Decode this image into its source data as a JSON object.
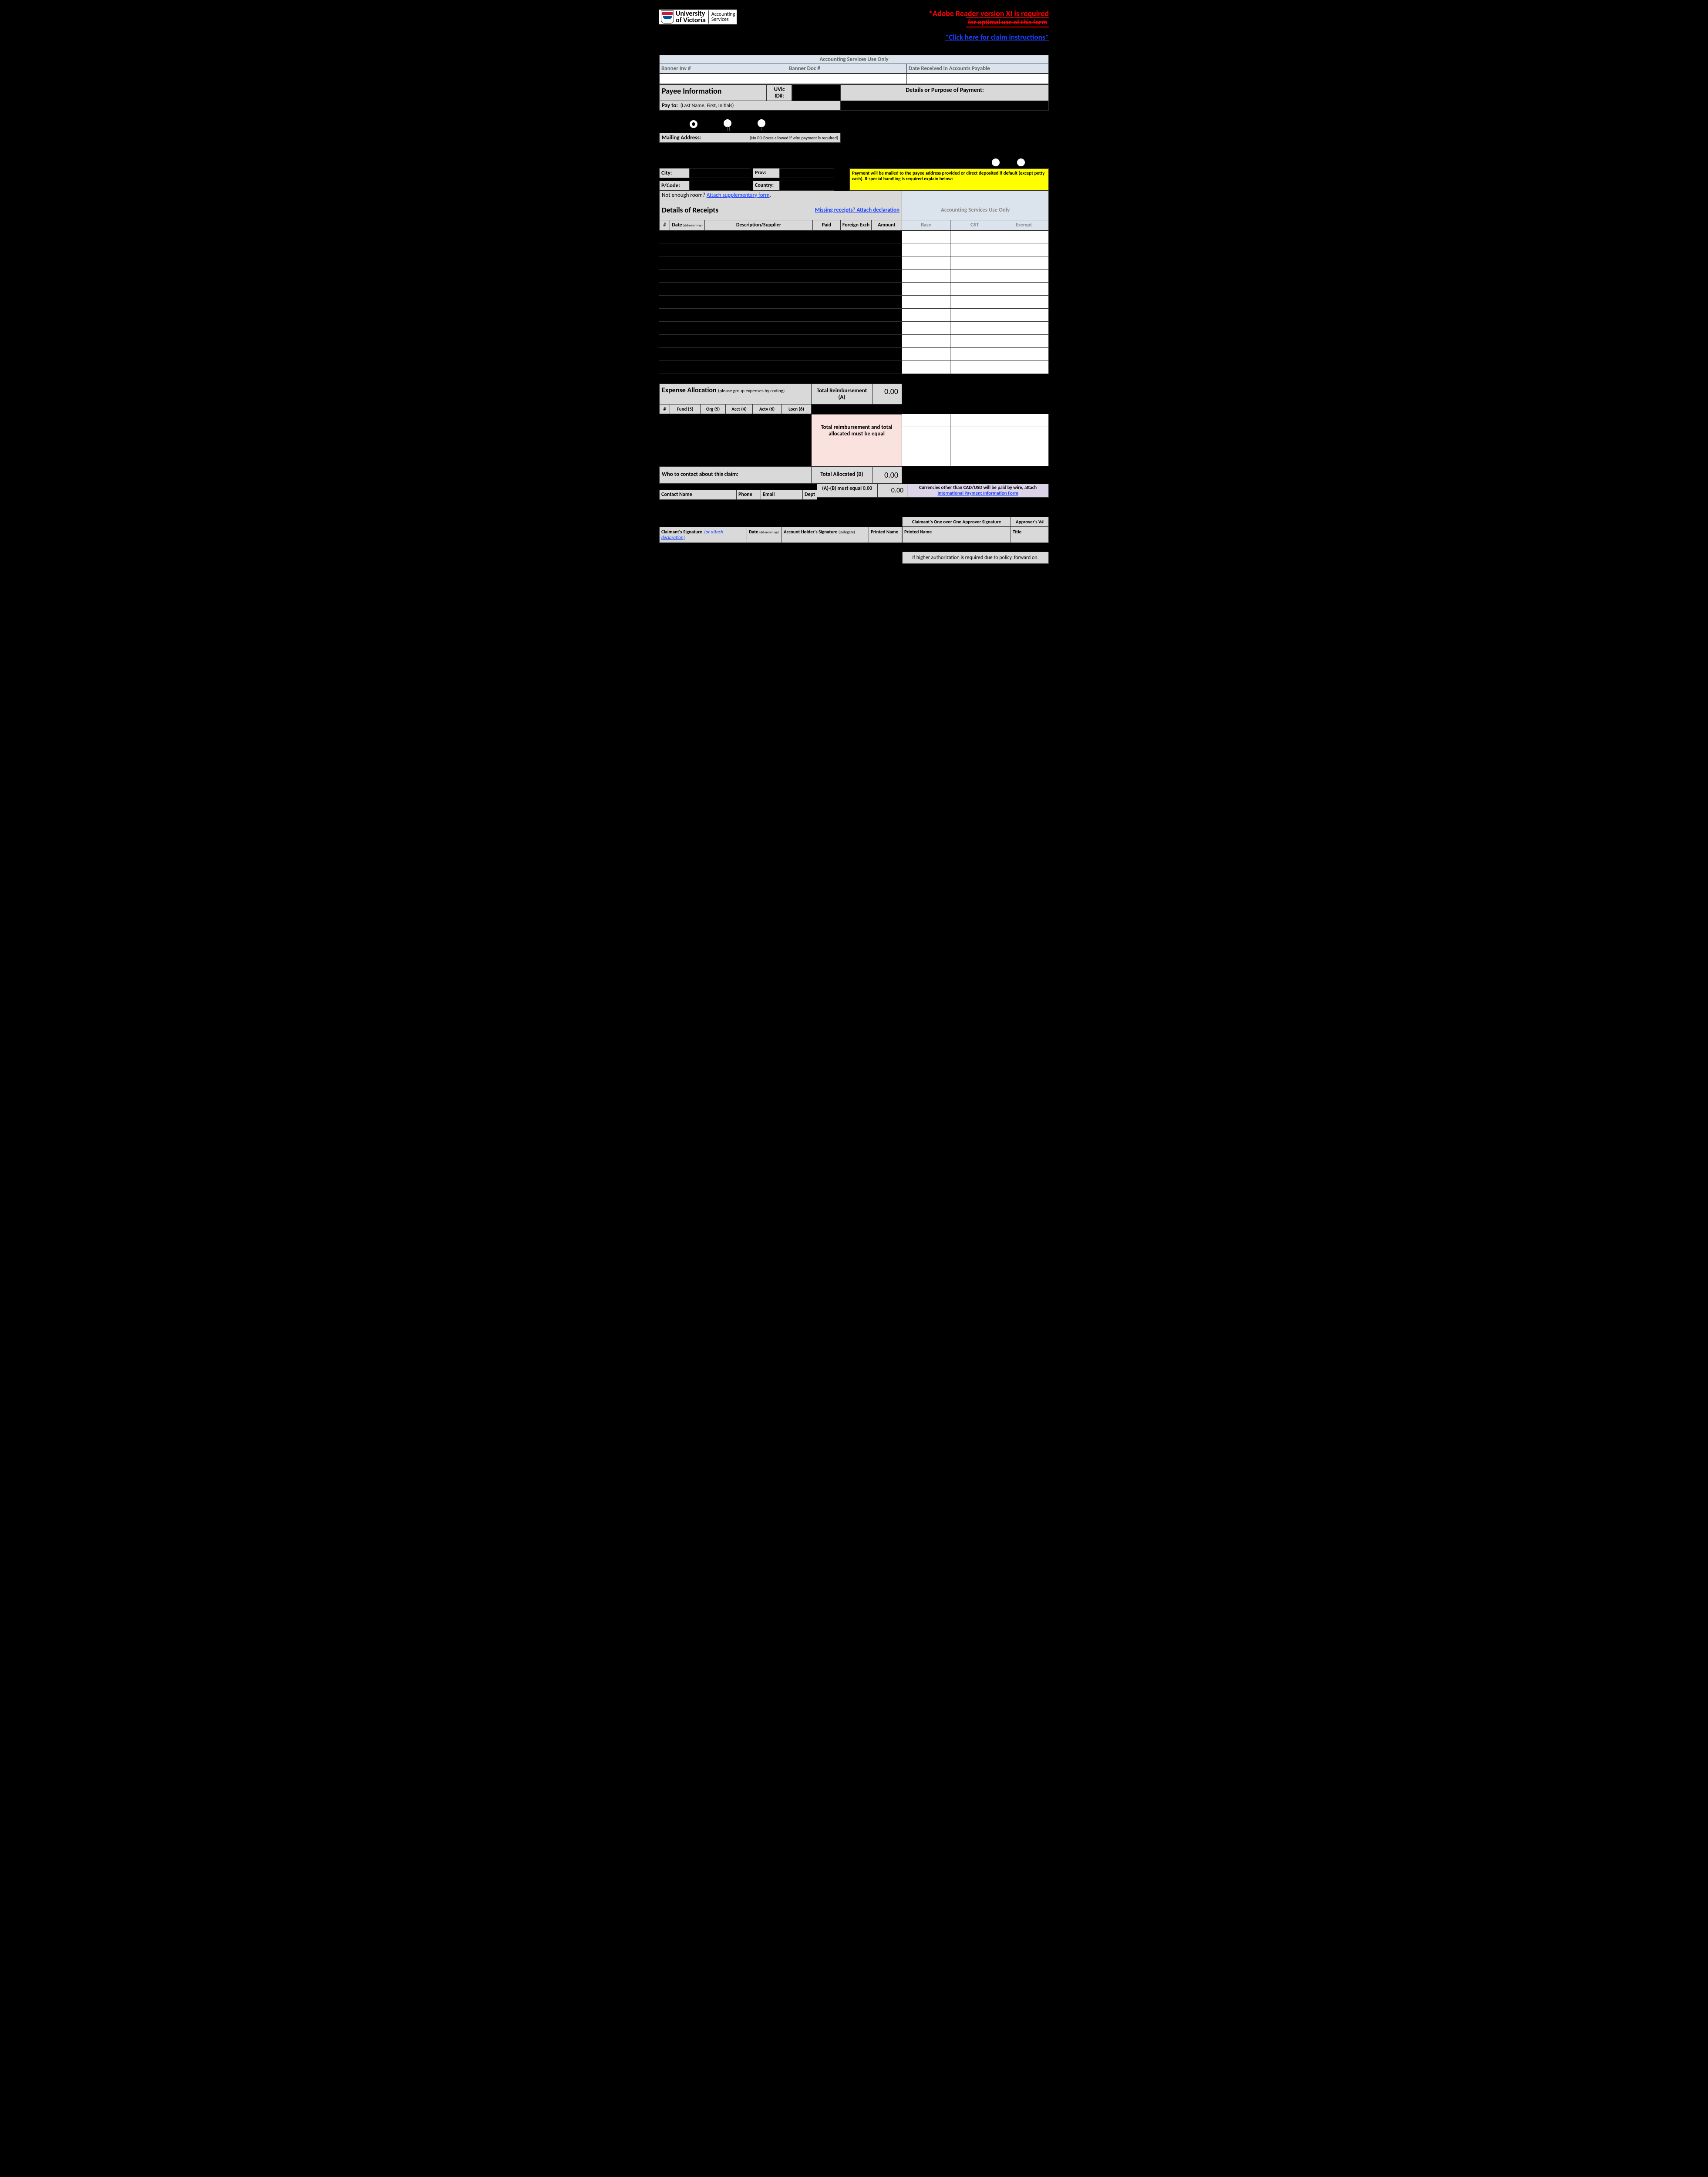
{
  "header": {
    "univ_line1": "University",
    "univ_line2": "of Victoria",
    "dept_line1": "Accounting",
    "dept_line2": "Services",
    "adobe_line1": "*Adobe Reader version XI is required",
    "adobe_line2": "for optimal use of this form",
    "claim_link": "*Click here for claim instructions*"
  },
  "acct_use_only": "Accounting Services Use Only",
  "banner_inv": "Banner Inv #",
  "banner_doc": "Banner Doc #",
  "date_recv": "Date Received in Accounts Payable",
  "payee_info": "Payee Information",
  "uvic_id": "UVic ID#:",
  "details_purpose": "Details or Purpose of Payment:",
  "pay_to": "Pay to:",
  "pay_to_sub": "(Last Name, First, Initials)",
  "mailing": "Mailing Address:",
  "mailing_sub": "(No PO Boxes allowed if wire payment is required)",
  "city": "City:",
  "prov": "Prov:",
  "pcode": "P/Code:",
  "country": "Country:",
  "yellow_text": "Payment will be mailed to the payee address provided or direct deposited if default (except petty cash). If special handling is required explain below:",
  "supp_pre": "Not enough room? ",
  "supp_link": "Attach supplementary form",
  "supp_post": ".",
  "dor_title": "Details of Receipts",
  "dor_link": "Missing receipts? Attach declaration",
  "cols": {
    "num": "#",
    "date": "Date",
    "date_sub": "(dd-mmm-yy)",
    "desc": "Description/Supplier",
    "paid": "Paid",
    "fx": "Foreign Exch",
    "amt": "Amount",
    "base": "Base",
    "gst": "GST",
    "ex": "Exempt"
  },
  "receipt_rows": 11,
  "ea_title": "Expense Allocation",
  "ea_sub": "(please group expenses by coding)",
  "total_reimb": "Total Reimbursement (A)",
  "total_reimb_val": "0.00",
  "foal": {
    "num": "#",
    "fund": "Fund (5)",
    "org": "Org (5)",
    "acct": "Acct (4)",
    "actv": "Actv (6)",
    "locn": "Locn (6)"
  },
  "pink_text": "Total reimbursement and total allocated must be equal",
  "alloc_rows": 4,
  "who_contact": "Who to contact about this claim:",
  "total_alloc": "Total Allocated (B)",
  "total_alloc_val": "0.00",
  "ab_label": "(A)-(B) must equal 0.00",
  "ab_val": "0.00",
  "currency_note": "Currencies other than CAD/USD will be paid by wire, attach",
  "currency_link": "International Payment  Information Form",
  "contact": {
    "name": "Contact Name",
    "phone": "Phone",
    "email": "Email",
    "dept": "Dept"
  },
  "sig": {
    "oneoverone": "Claimant's One over One Approver Signature",
    "appv": "Approver's V#",
    "claimant": "Claimant's Signature",
    "claimant_link": "(or attach declaration)",
    "date": "Date",
    "date_sub": "(dd-mmm-yy)",
    "acctholder": "Account Holder's Signature",
    "acctholder_sub": "(Delegate)",
    "printed": "Printed Name",
    "printed2": "Printed Name",
    "title": "Title"
  },
  "footer_note": "If higher authorization is required due to policy, forward on."
}
